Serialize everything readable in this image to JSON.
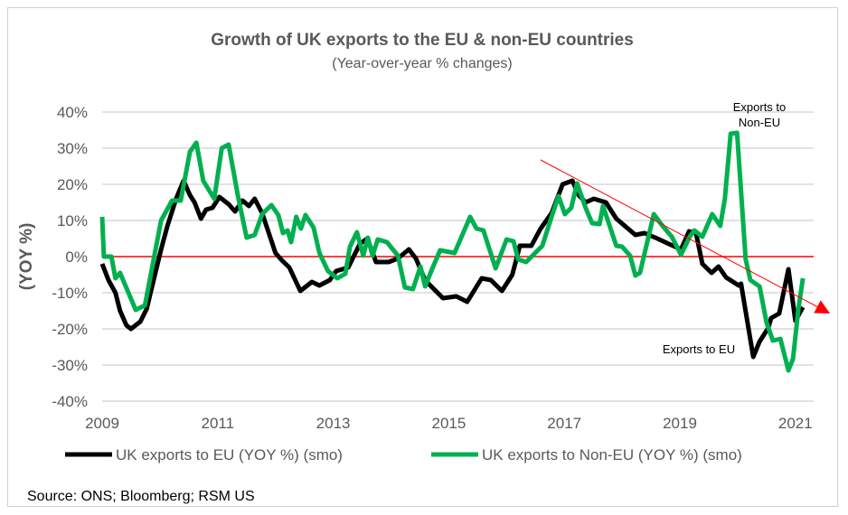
{
  "chart_data": {
    "type": "line",
    "title": "Growth of UK exports to the EU & non-EU countries",
    "subtitle": "(Year-over-year % changes)",
    "xlabel": "",
    "ylabel": "(YOY %)",
    "xlim": [
      2009,
      2021.32
    ],
    "ylim": [
      -40,
      40
    ],
    "xticks": [
      2009,
      2011,
      2013,
      2015,
      2017,
      2019,
      2021
    ],
    "xtick_labels": [
      "2009",
      "2011",
      "2013",
      "2015",
      "2017",
      "2019",
      "2021"
    ],
    "yticks": [
      40,
      30,
      20,
      10,
      0,
      -10,
      -20,
      -30,
      -40
    ],
    "ytick_labels": [
      "40%",
      "30%",
      "20%",
      "10%",
      "0%",
      "-10%",
      "-20%",
      "-30%",
      "-40%"
    ],
    "grid": true,
    "zero_line_color": "#ff0000",
    "legend_position": "bottom",
    "series": [
      {
        "name": "UK exports  to EU (YOY %) (smo)",
        "color": "#000000",
        "points": [
          [
            2009.0,
            -2
          ],
          [
            2009.11,
            -6.5
          ],
          [
            2009.23,
            -10
          ],
          [
            2009.31,
            -15
          ],
          [
            2009.42,
            -19
          ],
          [
            2009.5,
            -20
          ],
          [
            2009.66,
            -18
          ],
          [
            2009.77,
            -14.5
          ],
          [
            2009.89,
            -6.5
          ],
          [
            2010.02,
            2
          ],
          [
            2010.13,
            8.5
          ],
          [
            2010.28,
            16
          ],
          [
            2010.41,
            21
          ],
          [
            2010.52,
            17
          ],
          [
            2010.6,
            15
          ],
          [
            2010.71,
            10.5
          ],
          [
            2010.8,
            13
          ],
          [
            2010.91,
            13.5
          ],
          [
            2011.03,
            16.5
          ],
          [
            2011.19,
            14.5
          ],
          [
            2011.3,
            12.5
          ],
          [
            2011.43,
            15.5
          ],
          [
            2011.54,
            14
          ],
          [
            2011.64,
            16
          ],
          [
            2011.77,
            12
          ],
          [
            2012.0,
            1
          ],
          [
            2012.11,
            -1
          ],
          [
            2012.24,
            -3
          ],
          [
            2012.43,
            -9.5
          ],
          [
            2012.63,
            -7
          ],
          [
            2012.76,
            -8
          ],
          [
            2012.94,
            -6.5
          ],
          [
            2013.05,
            -4
          ],
          [
            2013.26,
            -3
          ],
          [
            2013.46,
            3.5
          ],
          [
            2013.59,
            5
          ],
          [
            2013.74,
            -1.5
          ],
          [
            2013.96,
            -1.5
          ],
          [
            2014.12,
            -0.5
          ],
          [
            2014.31,
            2
          ],
          [
            2014.43,
            -0.5
          ],
          [
            2014.59,
            -6.5
          ],
          [
            2014.68,
            -8
          ],
          [
            2014.9,
            -11.5
          ],
          [
            2015.13,
            -11
          ],
          [
            2015.32,
            -12.5
          ],
          [
            2015.57,
            -6
          ],
          [
            2015.73,
            -6.5
          ],
          [
            2015.92,
            -9.5
          ],
          [
            2016.1,
            -5
          ],
          [
            2016.23,
            3
          ],
          [
            2016.43,
            3
          ],
          [
            2016.59,
            7.75
          ],
          [
            2016.78,
            12
          ],
          [
            2016.97,
            20
          ],
          [
            2017.14,
            21
          ],
          [
            2017.25,
            17
          ],
          [
            2017.37,
            15
          ],
          [
            2017.51,
            16
          ],
          [
            2017.72,
            15
          ],
          [
            2017.9,
            10.5
          ],
          [
            2018.23,
            6
          ],
          [
            2018.39,
            6.5
          ],
          [
            2018.61,
            5
          ],
          [
            2018.81,
            3.5
          ],
          [
            2019.02,
            2
          ],
          [
            2019.16,
            7
          ],
          [
            2019.28,
            6.5
          ],
          [
            2019.39,
            -2
          ],
          [
            2019.55,
            -4.5
          ],
          [
            2019.67,
            -2.75
          ],
          [
            2019.8,
            -5.75
          ],
          [
            2020.02,
            -8
          ],
          [
            2020.06,
            -7.5
          ],
          [
            2020.27,
            -27.75
          ],
          [
            2020.38,
            -23.5
          ],
          [
            2020.53,
            -19.75
          ],
          [
            2020.58,
            -17
          ],
          [
            2020.72,
            -15.75
          ],
          [
            2020.88,
            -3.5
          ],
          [
            2021.0,
            -17.75
          ],
          [
            2021.13,
            -14
          ]
        ]
      },
      {
        "name": "UK exports to Non-EU (YOY %) (smo)",
        "color": "#00b050",
        "points": [
          [
            2009.0,
            11
          ],
          [
            2009.03,
            0
          ],
          [
            2009.16,
            0
          ],
          [
            2009.23,
            -6
          ],
          [
            2009.31,
            -4.5
          ],
          [
            2009.58,
            -14.75
          ],
          [
            2009.74,
            -13.5
          ],
          [
            2010.02,
            10
          ],
          [
            2010.21,
            15.5
          ],
          [
            2010.36,
            15.5
          ],
          [
            2010.52,
            29
          ],
          [
            2010.63,
            31.5
          ],
          [
            2010.75,
            21
          ],
          [
            2010.94,
            16
          ],
          [
            2011.07,
            30
          ],
          [
            2011.19,
            31
          ],
          [
            2011.35,
            16.75
          ],
          [
            2011.5,
            5.25
          ],
          [
            2011.64,
            6
          ],
          [
            2011.77,
            11.75
          ],
          [
            2011.93,
            14.25
          ],
          [
            2012.05,
            11.5
          ],
          [
            2012.13,
            6.5
          ],
          [
            2012.21,
            7.25
          ],
          [
            2012.27,
            4
          ],
          [
            2012.36,
            11
          ],
          [
            2012.44,
            7.75
          ],
          [
            2012.52,
            11.5
          ],
          [
            2012.66,
            8
          ],
          [
            2012.76,
            1
          ],
          [
            2012.91,
            -4
          ],
          [
            2013.07,
            -6
          ],
          [
            2013.21,
            -4.75
          ],
          [
            2013.29,
            2.75
          ],
          [
            2013.41,
            6.75
          ],
          [
            2013.52,
            0.25
          ],
          [
            2013.6,
            5.25
          ],
          [
            2013.68,
            0.25
          ],
          [
            2013.77,
            4.75
          ],
          [
            2013.93,
            4
          ],
          [
            2014.12,
            0.25
          ],
          [
            2014.24,
            -8.5
          ],
          [
            2014.38,
            -9
          ],
          [
            2014.51,
            -2.75
          ],
          [
            2014.59,
            -8.25
          ],
          [
            2014.71,
            -3.5
          ],
          [
            2014.85,
            1.75
          ],
          [
            2015.1,
            1
          ],
          [
            2015.37,
            11
          ],
          [
            2015.48,
            7.75
          ],
          [
            2015.6,
            7.25
          ],
          [
            2015.81,
            -3.25
          ],
          [
            2016.0,
            4.75
          ],
          [
            2016.12,
            4.25
          ],
          [
            2016.2,
            -0.75
          ],
          [
            2016.34,
            -1.5
          ],
          [
            2016.62,
            3
          ],
          [
            2016.78,
            11
          ],
          [
            2016.9,
            16.75
          ],
          [
            2017.01,
            11.75
          ],
          [
            2017.12,
            13.5
          ],
          [
            2017.22,
            20.25
          ],
          [
            2017.37,
            13.5
          ],
          [
            2017.48,
            9.25
          ],
          [
            2017.61,
            9
          ],
          [
            2017.67,
            14
          ],
          [
            2017.9,
            3
          ],
          [
            2018.0,
            2.75
          ],
          [
            2018.14,
            0.25
          ],
          [
            2018.23,
            -5.25
          ],
          [
            2018.31,
            -4.5
          ],
          [
            2018.55,
            11.75
          ],
          [
            2018.7,
            8.5
          ],
          [
            2018.86,
            5.5
          ],
          [
            2019.02,
            0.5
          ],
          [
            2019.17,
            5.5
          ],
          [
            2019.25,
            7.25
          ],
          [
            2019.39,
            5.5
          ],
          [
            2019.56,
            11.75
          ],
          [
            2019.7,
            8.5
          ],
          [
            2019.78,
            16
          ],
          [
            2019.88,
            34
          ],
          [
            2019.99,
            34.25
          ],
          [
            2020.14,
            -0.75
          ],
          [
            2020.22,
            -6.5
          ],
          [
            2020.38,
            -8.25
          ],
          [
            2020.5,
            -18.25
          ],
          [
            2020.61,
            -23.25
          ],
          [
            2020.74,
            -22.75
          ],
          [
            2020.88,
            -31.5
          ],
          [
            2020.96,
            -28.25
          ],
          [
            2021.05,
            -14.75
          ],
          [
            2021.13,
            -6
          ]
        ]
      }
    ],
    "trend_arrow": {
      "color": "#ff0000",
      "from": [
        2016.59,
        26.75
      ],
      "to": [
        2021.6,
        -15.75
      ]
    },
    "annotations": {
      "non_eu_line1": "Exports to",
      "non_eu_line2": "Non-EU",
      "eu": "Exports to EU"
    }
  },
  "source": "Source: ONS; Bloomberg; RSM US"
}
